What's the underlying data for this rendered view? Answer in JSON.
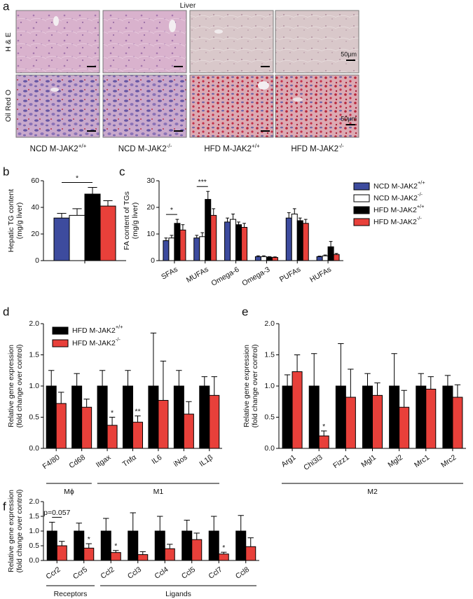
{
  "figure_a": {
    "panel": "a",
    "title": "Liver",
    "rows": [
      "H & E",
      "Oil Red O"
    ],
    "columns": [
      "NCD M-JAK2+/+",
      "NCD M-JAK2-/-",
      "HFD M-JAK2+/+",
      "HFD M-JAK2-/-"
    ],
    "scale_labels": [
      "50μm",
      "50μm"
    ]
  },
  "chart_data": [
    {
      "type": "bar",
      "panel": "b",
      "ylabel": [
        "Hepatic TG content",
        "(mg/g liver)"
      ],
      "categories": [
        null
      ],
      "series": [
        {
          "color": "#3d4b9e",
          "values": [
            32
          ],
          "errors": [
            3.5
          ]
        },
        {
          "color": "#ffffff",
          "values": [
            34
          ],
          "errors": [
            5
          ]
        },
        {
          "color": "#000000",
          "values": [
            50
          ],
          "errors": [
            5
          ]
        },
        {
          "color": "#e8403a",
          "values": [
            41
          ],
          "errors": [
            4
          ]
        }
      ],
      "ylim": [
        0,
        60
      ],
      "yticks": [
        0,
        20,
        40,
        60
      ],
      "annotations": [
        "*"
      ]
    },
    {
      "type": "bar",
      "panel": "c",
      "ylabel": [
        "FA content of TGs",
        "(mg/g liver)"
      ],
      "categories": [
        "SFAs",
        "MUFAs",
        "Omega-6",
        "Omega-3",
        "PUFAs",
        "HUFAs"
      ],
      "series": [
        {
          "name": "NCD M-JAK2+/+",
          "color": "#3d4b9e",
          "values": [
            7.5,
            8.5,
            14.5,
            1.5,
            16,
            1.5
          ],
          "errors": [
            1,
            1,
            1.5,
            0.3,
            2,
            0.2
          ]
        },
        {
          "name": "NCD M-JAK2-/-",
          "color": "#ffffff",
          "values": [
            8.5,
            9,
            15.5,
            1.5,
            17.5,
            1.8
          ],
          "errors": [
            1,
            1.5,
            2,
            0.3,
            2,
            0.3
          ]
        },
        {
          "name": "HFD M-JAK2+/+",
          "color": "#000000",
          "values": [
            14,
            23,
            13.5,
            1.3,
            15,
            5.2
          ],
          "errors": [
            1.5,
            3,
            1,
            0.2,
            1,
            2
          ]
        },
        {
          "name": "HFD M-JAK2-/-",
          "color": "#e8403a",
          "values": [
            11.5,
            17,
            12.5,
            1.2,
            14,
            2.3
          ],
          "errors": [
            2,
            2.5,
            1.5,
            0.2,
            1.5,
            0.4
          ]
        }
      ],
      "ylim": [
        0,
        30
      ],
      "yticks": [
        0,
        10,
        20,
        30
      ],
      "legend": "right",
      "annotations": [
        "*",
        "***"
      ]
    },
    {
      "type": "bar",
      "panel": "d",
      "ylabel": [
        "Relative gene expression",
        "(fold change over control)"
      ],
      "categories": [
        "F4/80",
        "Cd68",
        "Itgax",
        "Tnfα",
        "IL6",
        "iNos",
        "IL1β"
      ],
      "series": [
        {
          "name": "HFD M-JAK2+/+",
          "color": "#000000",
          "values": [
            1,
            1,
            1,
            1,
            1,
            1,
            1
          ],
          "errors": [
            0.25,
            0.2,
            0.25,
            0.25,
            0.85,
            0.25,
            0.15
          ]
        },
        {
          "name": "HFD M-JAK2-/-",
          "color": "#e8403a",
          "values": [
            0.72,
            0.66,
            0.37,
            0.42,
            0.77,
            0.55,
            0.85
          ],
          "errors": [
            0.18,
            0.13,
            0.13,
            0.1,
            0.63,
            0.2,
            0.3
          ]
        }
      ],
      "ylim": [
        0,
        2
      ],
      "yticks": [
        {
          "value": 0,
          "label": "0.0"
        },
        0.5,
        {
          "value": 1,
          "label": "1.0"
        },
        1.5,
        {
          "value": 2,
          "label": "2.0"
        }
      ],
      "legend": "upper left",
      "annotations": [
        "*",
        "**"
      ],
      "groups": [
        "Mϕ",
        "M1"
      ]
    },
    {
      "type": "bar",
      "panel": "e",
      "ylabel": [
        "Relative gene expression",
        "(fold change over control)"
      ],
      "categories": [
        "Arg1",
        "Chi3l3",
        "Fizz1",
        "Mgl1",
        "Mgl2",
        "Mrc1",
        "Mrc2"
      ],
      "series": [
        {
          "color": "#000000",
          "values": [
            1,
            1,
            1,
            1,
            1,
            1,
            1
          ],
          "errors": [
            0.18,
            0.52,
            0.68,
            0.2,
            0.52,
            0.2,
            0.17
          ]
        },
        {
          "color": "#e8403a",
          "values": [
            1.23,
            0.2,
            0.82,
            0.85,
            0.66,
            0.95,
            0.82
          ],
          "errors": [
            0.27,
            0.08,
            0.45,
            0.2,
            0.27,
            0.2,
            0.2
          ]
        }
      ],
      "ylim": [
        0,
        2
      ],
      "yticks": [
        {
          "value": 0,
          "label": "0.0"
        },
        0.5,
        {
          "value": 1,
          "label": "1.0"
        },
        1.5,
        {
          "value": 2,
          "label": "2.0"
        }
      ],
      "annotations": [
        "*"
      ],
      "groups": [
        "M2"
      ]
    },
    {
      "type": "bar",
      "panel": "f",
      "ylabel": [
        "Relative gene expression",
        "(fold change over control)"
      ],
      "categories": [
        "Ccr2",
        "Ccr5",
        "Ccl2",
        "Ccl3",
        "Ccl4",
        "Ccl5",
        "Ccl7",
        "Ccl8"
      ],
      "series": [
        {
          "color": "#000000",
          "values": [
            1,
            1,
            1,
            1,
            1,
            1,
            1,
            1
          ],
          "errors": [
            0.3,
            0.27,
            0.43,
            0.62,
            0.5,
            0.37,
            0.5,
            0.53
          ]
        },
        {
          "color": "#e8403a",
          "values": [
            0.5,
            0.42,
            0.27,
            0.2,
            0.4,
            0.71,
            0.22,
            0.47
          ],
          "errors": [
            0.15,
            0.15,
            0.07,
            0.1,
            0.15,
            0.22,
            0.06,
            0.3
          ]
        }
      ],
      "ylim": [
        0,
        2
      ],
      "yticks": [
        {
          "value": 0,
          "label": "0.0"
        },
        0.5,
        {
          "value": 1,
          "label": "1.0"
        },
        1.5,
        {
          "value": 2,
          "label": "2.0"
        }
      ],
      "annotations": [
        "p=0.057",
        "*",
        "*",
        "*"
      ],
      "groups": [
        "Receptors",
        "Ligands"
      ]
    }
  ]
}
